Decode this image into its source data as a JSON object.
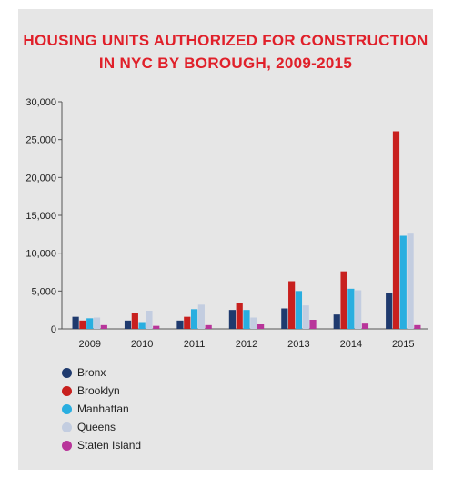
{
  "chart_data": {
    "type": "bar",
    "title_lines": [
      "HOUSING UNITS AUTHORIZED FOR CONSTRUCTION",
      "IN NYC BY BOROUGH, 2009-2015"
    ],
    "title_color": "#e0202a",
    "categories": [
      "2009",
      "2010",
      "2011",
      "2012",
      "2013",
      "2014",
      "2015"
    ],
    "series": [
      {
        "name": "Bronx",
        "color": "#1f3a6e",
        "values": [
          1600,
          1100,
          1100,
          2500,
          2700,
          1900,
          4700
        ]
      },
      {
        "name": "Brooklyn",
        "color": "#c8201e",
        "values": [
          1100,
          2100,
          1600,
          3400,
          6300,
          7600,
          26100
        ]
      },
      {
        "name": "Manhattan",
        "color": "#29aee0",
        "values": [
          1400,
          900,
          2600,
          2500,
          5000,
          5300,
          12300
        ]
      },
      {
        "name": "Queens",
        "color": "#c3cde0",
        "values": [
          1500,
          2400,
          3200,
          1500,
          3100,
          5100,
          12700
        ]
      },
      {
        "name": "Staten Island",
        "color": "#b8359a",
        "values": [
          500,
          400,
          500,
          600,
          1200,
          700,
          500
        ]
      }
    ],
    "y_ticks": [
      "0",
      "5,000",
      "10,000",
      "15,000",
      "20,000",
      "25,000",
      "30,000"
    ],
    "ylim": [
      0,
      30000
    ],
    "grid": false,
    "legend_position": "bottom-left"
  }
}
